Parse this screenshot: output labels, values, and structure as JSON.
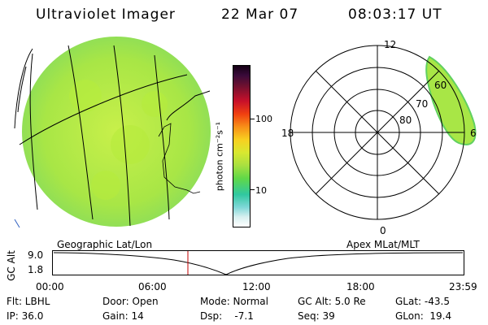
{
  "header": {
    "title": "Ultraviolet Imager",
    "date": "22 Mar 07",
    "time": "08:03:17 UT"
  },
  "colorbar": {
    "label": "photon cm⁻²s⁻¹",
    "ticks": [
      "100",
      "10"
    ]
  },
  "polar_plot": {
    "mlt_labels": [
      "12",
      "18",
      "6",
      "0"
    ],
    "lat_labels": [
      "60",
      "70",
      "80"
    ]
  },
  "coord_captions": {
    "left": "Geographic Lat/Lon",
    "right": "Apex MLat/MLT"
  },
  "altitude_panel": {
    "axis_label": "GC Alt",
    "y_max": "9.0",
    "y_min": "1.8",
    "time_ticks": [
      "00:00",
      "06:00",
      "12:00",
      "18:00",
      "23:59"
    ]
  },
  "status": {
    "flt": "Flt: LBHL",
    "ip": "IP: 36.0",
    "door": "Door: Open",
    "gain": "Gain: 14",
    "mode": "Mode: Normal",
    "dsp": "Dsp:    -7.1",
    "gc_alt": "GC Alt: 5.0 Re",
    "seq": "Seq: 39",
    "glat": "GLat: -43.5",
    "glon": "GLon:  19.4"
  }
}
